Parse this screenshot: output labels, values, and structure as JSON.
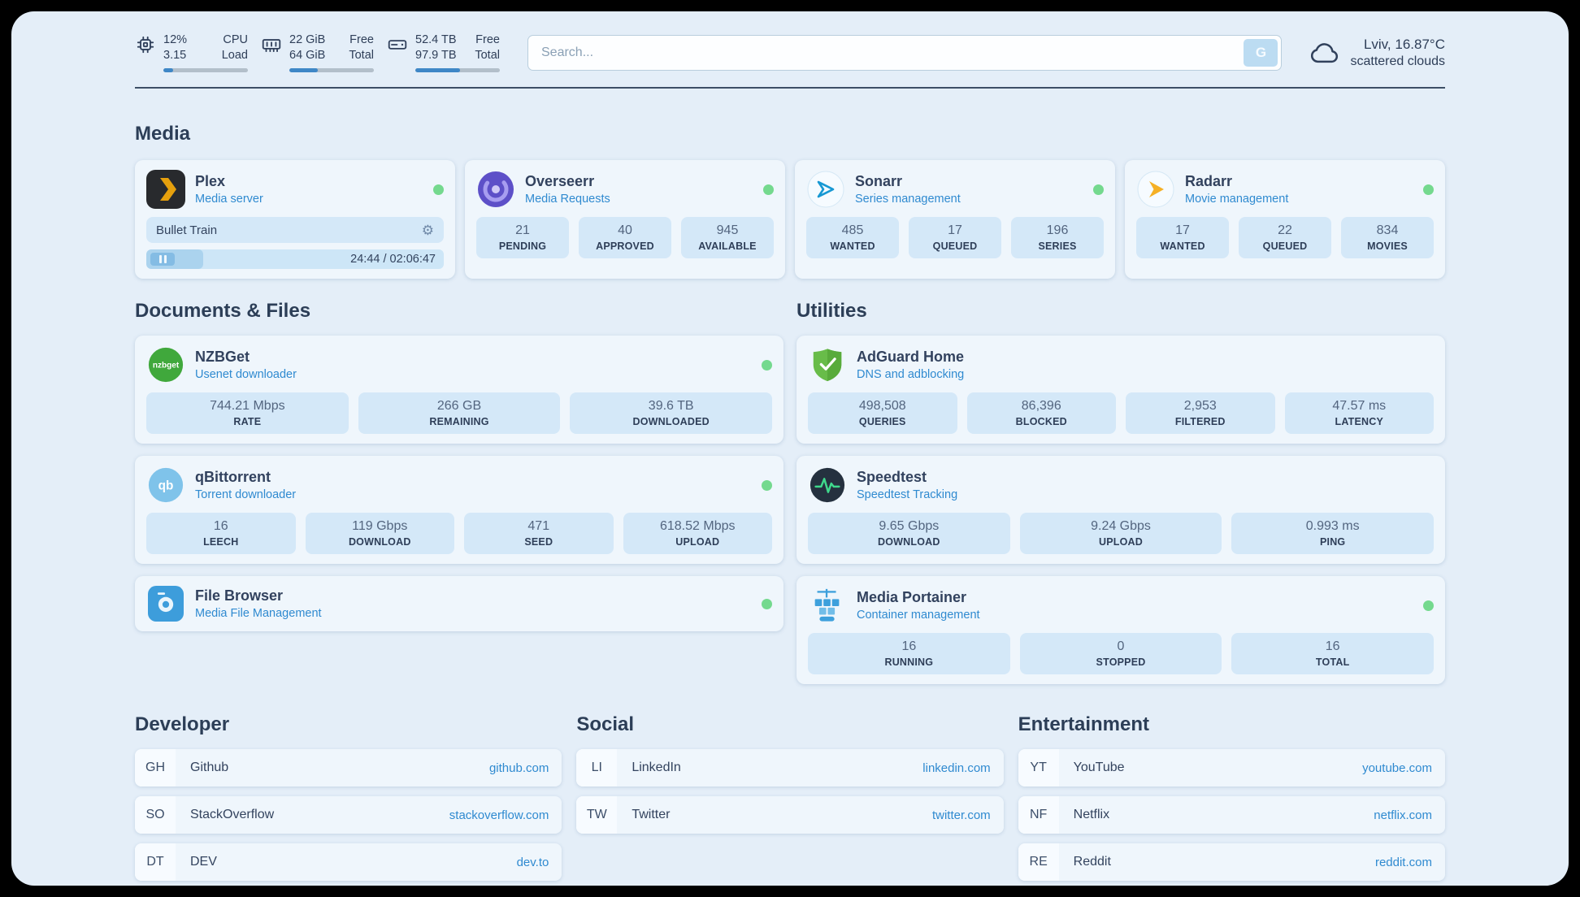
{
  "header": {
    "cpu": {
      "value_top": "12%",
      "label_top": "CPU",
      "value_bottom": "3.15",
      "label_bottom": "Load",
      "percent": 12
    },
    "ram": {
      "value_top": "22 GiB",
      "label_top": "Free",
      "value_bottom": "64 GiB",
      "label_bottom": "Total",
      "percent": 34
    },
    "disk": {
      "value_top": "52.4 TB",
      "label_top": "Free",
      "value_bottom": "97.9 TB",
      "label_bottom": "Total",
      "percent": 53
    },
    "search": {
      "placeholder": "Search...",
      "button_label": "G"
    },
    "weather": {
      "location": "Lviv, 16.87°C",
      "condition": "scattered clouds"
    }
  },
  "sections": {
    "media": "Media",
    "documents": "Documents & Files",
    "utilities": "Utilities"
  },
  "apps": {
    "plex": {
      "title": "Plex",
      "subtitle": "Media server",
      "now_playing": "Bullet Train",
      "time": "24:44 / 02:06:47",
      "progress_percent": 19
    },
    "overseerr": {
      "title": "Overseerr",
      "subtitle": "Media Requests",
      "stats": [
        {
          "value": "21",
          "label": "PENDING"
        },
        {
          "value": "40",
          "label": "APPROVED"
        },
        {
          "value": "945",
          "label": "AVAILABLE"
        }
      ]
    },
    "sonarr": {
      "title": "Sonarr",
      "subtitle": "Series management",
      "stats": [
        {
          "value": "485",
          "label": "WANTED"
        },
        {
          "value": "17",
          "label": "QUEUED"
        },
        {
          "value": "196",
          "label": "SERIES"
        }
      ]
    },
    "radarr": {
      "title": "Radarr",
      "subtitle": "Movie management",
      "stats": [
        {
          "value": "17",
          "label": "WANTED"
        },
        {
          "value": "22",
          "label": "QUEUED"
        },
        {
          "value": "834",
          "label": "MOVIES"
        }
      ]
    },
    "nzbget": {
      "title": "NZBGet",
      "subtitle": "Usenet downloader",
      "stats": [
        {
          "value": "744.21 Mbps",
          "label": "RATE"
        },
        {
          "value": "266 GB",
          "label": "REMAINING"
        },
        {
          "value": "39.6 TB",
          "label": "DOWNLOADED"
        }
      ]
    },
    "qbittorrent": {
      "title": "qBittorrent",
      "subtitle": "Torrent downloader",
      "stats": [
        {
          "value": "16",
          "label": "LEECH"
        },
        {
          "value": "119 Gbps",
          "label": "DOWNLOAD"
        },
        {
          "value": "471",
          "label": "SEED"
        },
        {
          "value": "618.52 Mbps",
          "label": "UPLOAD"
        }
      ]
    },
    "filebrowser": {
      "title": "File Browser",
      "subtitle": "Media File Management"
    },
    "adguard": {
      "title": "AdGuard Home",
      "subtitle": "DNS and adblocking",
      "stats": [
        {
          "value": "498,508",
          "label": "QUERIES"
        },
        {
          "value": "86,396",
          "label": "BLOCKED"
        },
        {
          "value": "2,953",
          "label": "FILTERED"
        },
        {
          "value": "47.57 ms",
          "label": "LATENCY"
        }
      ]
    },
    "speedtest": {
      "title": "Speedtest",
      "subtitle": "Speedtest Tracking",
      "stats": [
        {
          "value": "9.65 Gbps",
          "label": "DOWNLOAD"
        },
        {
          "value": "9.24 Gbps",
          "label": "UPLOAD"
        },
        {
          "value": "0.993 ms",
          "label": "PING"
        }
      ]
    },
    "portainer": {
      "title": "Media Portainer",
      "subtitle": "Container management",
      "stats": [
        {
          "value": "16",
          "label": "RUNNING"
        },
        {
          "value": "0",
          "label": "STOPPED"
        },
        {
          "value": "16",
          "label": "TOTAL"
        }
      ]
    }
  },
  "bookmarks": [
    {
      "title": "Developer",
      "items": [
        {
          "abbr": "GH",
          "name": "Github",
          "domain": "github.com"
        },
        {
          "abbr": "SO",
          "name": "StackOverflow",
          "domain": "stackoverflow.com"
        },
        {
          "abbr": "DT",
          "name": "DEV",
          "domain": "dev.to"
        }
      ]
    },
    {
      "title": "Social",
      "items": [
        {
          "abbr": "LI",
          "name": "LinkedIn",
          "domain": "linkedin.com"
        },
        {
          "abbr": "TW",
          "name": "Twitter",
          "domain": "twitter.com"
        }
      ]
    },
    {
      "title": "Entertainment",
      "items": [
        {
          "abbr": "YT",
          "name": "YouTube",
          "domain": "youtube.com"
        },
        {
          "abbr": "NF",
          "name": "Netflix",
          "domain": "netflix.com"
        },
        {
          "abbr": "RE",
          "name": "Reddit",
          "domain": "reddit.com"
        }
      ]
    }
  ],
  "colors": {
    "accent": "#2e86c1",
    "status_online": "#74d98e"
  }
}
